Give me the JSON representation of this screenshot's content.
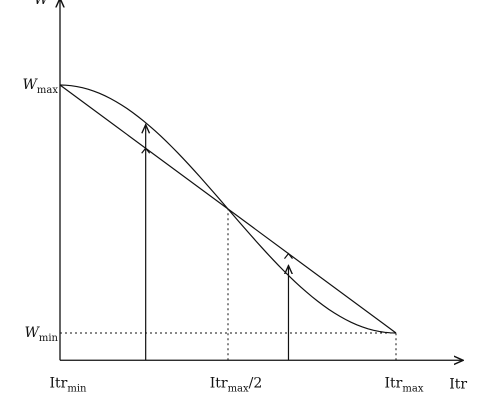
{
  "chart_data": {
    "type": "line",
    "title": "",
    "axis_labels": {
      "y": "W",
      "x": "Itr"
    },
    "y_ticks": [
      {
        "base": "W",
        "sub": "max",
        "value": 1
      },
      {
        "base": "W",
        "sub": "min",
        "value": 0
      }
    ],
    "x_ticks": [
      {
        "base": "Itr",
        "sub": "min",
        "suffix": "",
        "value": 0
      },
      {
        "base": "Itr",
        "sub": "max",
        "suffix": "/2",
        "value": 0.5
      },
      {
        "base": "Itr",
        "sub": "max",
        "suffix": "",
        "value": 1
      }
    ],
    "xlim": [
      0,
      1.2
    ],
    "ylim": [
      -0.11,
      1.35
    ],
    "series": [
      {
        "name": "",
        "style": "straight",
        "x": [
          0,
          1
        ],
        "y": [
          1,
          0
        ]
      },
      {
        "name": "",
        "style": "curve",
        "x": [
          0,
          0.1,
          0.2,
          0.3,
          0.4,
          0.5,
          0.6,
          0.7,
          0.8,
          0.9,
          1
        ],
        "y": [
          1,
          0.976,
          0.905,
          0.794,
          0.655,
          0.5,
          0.345,
          0.206,
          0.095,
          0.024,
          0
        ]
      }
    ],
    "guides": [
      {
        "from": [
          0.5,
          0
        ],
        "to": [
          0.5,
          0.5
        ]
      },
      {
        "from": [
          1,
          0
        ],
        "to": [
          1,
          0
        ]
      },
      {
        "from": [
          0,
          0
        ],
        "to": [
          1,
          0
        ]
      }
    ],
    "arrows": [
      {
        "x": 0.255,
        "y0": -0.11,
        "y1": 0.84
      },
      {
        "x": 0.68,
        "y0": -0.11,
        "y1": 0.272
      }
    ],
    "ticks_on_straight": [
      0.255,
      0.68
    ],
    "grid": false,
    "legend": "none"
  }
}
